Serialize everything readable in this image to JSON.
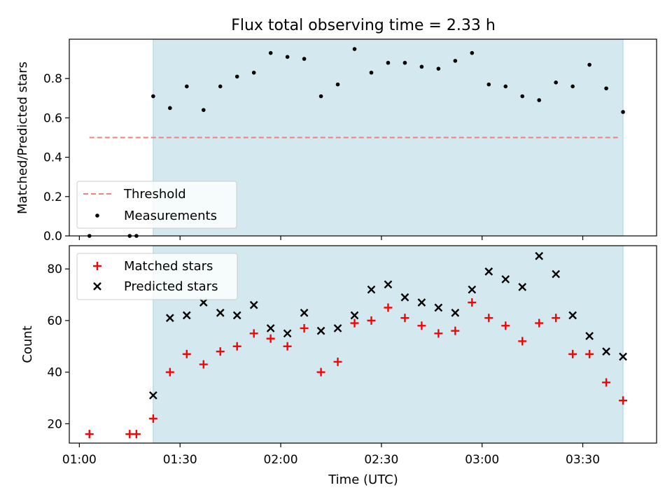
{
  "chart_data": {
    "title": "Flux total observing time = 2.33 h",
    "xlabel": "Time (UTC)",
    "x_ticks": [
      "01:00",
      "01:30",
      "02:00",
      "02:30",
      "03:00",
      "03:30"
    ],
    "x_range": [
      "00:57",
      "03:52"
    ],
    "observing_window": [
      "01:22",
      "03:42"
    ],
    "colors": {
      "window": "#d3e9ef",
      "window_edge": "#a7d3de",
      "threshold": "#f08080",
      "measurements": "#000000",
      "matched": "#ff0000",
      "predicted": "#000000"
    },
    "panels": [
      {
        "type": "scatter",
        "ylabel": "Matched/Predicted stars",
        "ylim": [
          0,
          1.0
        ],
        "y_ticks": [
          "0.0",
          "0.2",
          "0.4",
          "0.6",
          "0.8"
        ],
        "legend_position": "lower-left",
        "threshold": {
          "name": "Threshold",
          "y": 0.5,
          "x": [
            "01:03",
            "03:41"
          ]
        },
        "series": [
          {
            "name": "Measurements",
            "marker": "dot",
            "x": [
              "01:03",
              "01:15",
              "01:17",
              "01:22",
              "01:27",
              "01:32",
              "01:37",
              "01:42",
              "01:47",
              "01:52",
              "01:57",
              "02:02",
              "02:07",
              "02:12",
              "02:17",
              "02:22",
              "02:27",
              "02:32",
              "02:37",
              "02:42",
              "02:47",
              "02:52",
              "02:57",
              "03:02",
              "03:07",
              "03:12",
              "03:17",
              "03:22",
              "03:27",
              "03:32",
              "03:37",
              "03:42"
            ],
            "y": [
              0.0,
              0.0,
              0.0,
              0.71,
              0.65,
              0.76,
              0.64,
              0.76,
              0.81,
              0.83,
              0.93,
              0.91,
              0.9,
              0.71,
              0.77,
              0.95,
              0.83,
              0.88,
              0.88,
              0.86,
              0.85,
              0.89,
              0.93,
              0.77,
              0.76,
              0.71,
              0.69,
              0.78,
              0.76,
              0.87,
              0.75,
              0.63
            ]
          }
        ]
      },
      {
        "type": "scatter",
        "ylabel": "Count",
        "ylim": [
          12.5,
          89
        ],
        "y_ticks": [
          "20",
          "40",
          "60",
          "80"
        ],
        "legend_position": "upper-left",
        "series": [
          {
            "name": "Matched stars",
            "marker": "plus",
            "x": [
              "01:03",
              "01:15",
              "01:17",
              "01:22",
              "01:27",
              "01:32",
              "01:37",
              "01:42",
              "01:47",
              "01:52",
              "01:57",
              "02:02",
              "02:07",
              "02:12",
              "02:17",
              "02:22",
              "02:27",
              "02:32",
              "02:37",
              "02:42",
              "02:47",
              "02:52",
              "02:57",
              "03:02",
              "03:07",
              "03:12",
              "03:17",
              "03:22",
              "03:27",
              "03:32",
              "03:37",
              "03:42"
            ],
            "y": [
              16,
              16,
              16,
              22,
              40,
              47,
              43,
              48,
              50,
              55,
              53,
              50,
              57,
              40,
              44,
              59,
              60,
              65,
              61,
              58,
              55,
              56,
              67,
              61,
              58,
              52,
              59,
              61,
              47,
              47,
              36,
              29
            ]
          },
          {
            "name": "Predicted stars",
            "marker": "x",
            "x": [
              "01:22",
              "01:27",
              "01:32",
              "01:37",
              "01:42",
              "01:47",
              "01:52",
              "01:57",
              "02:02",
              "02:07",
              "02:12",
              "02:17",
              "02:22",
              "02:27",
              "02:32",
              "02:37",
              "02:42",
              "02:47",
              "02:52",
              "02:57",
              "03:02",
              "03:07",
              "03:12",
              "03:17",
              "03:22",
              "03:27",
              "03:32",
              "03:37",
              "03:42"
            ],
            "y": [
              31,
              61,
              62,
              67,
              63,
              62,
              66,
              57,
              55,
              63,
              56,
              57,
              62,
              72,
              74,
              69,
              67,
              65,
              63,
              72,
              79,
              76,
              73,
              85,
              78,
              62,
              54,
              48,
              46
            ]
          }
        ]
      }
    ]
  }
}
